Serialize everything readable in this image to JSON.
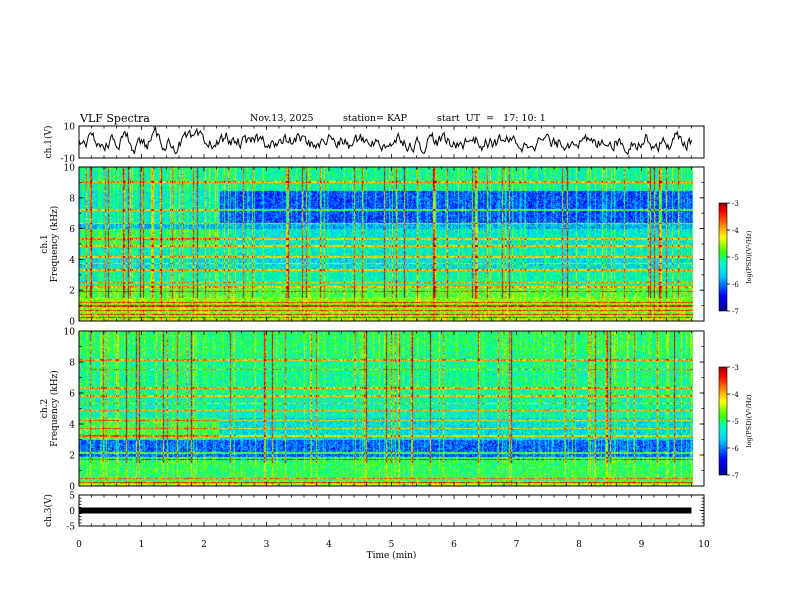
{
  "header": {
    "title": "VLF Spectra",
    "date": "Nov.13, 2025",
    "station": "station= KAP",
    "start": "start  UT  =   17: 10: 1"
  },
  "chart_data": [
    {
      "type": "line",
      "name": "ch1-waveform",
      "ylabel": "ch.1(V)",
      "ylim": [
        -10,
        10
      ],
      "y_ticks": [
        "10",
        "-10"
      ],
      "xlim": [
        0,
        10
      ],
      "approx_amplitude": 5
    },
    {
      "type": "heatmap",
      "name": "ch1-spectrogram",
      "ylabel": "ch.1\nFrequency (kHz)",
      "ylim": [
        0,
        10
      ],
      "y_ticks": [
        "0",
        "2",
        "4",
        "6",
        "8",
        "10"
      ],
      "xlim": [
        0,
        10
      ],
      "data_extent_min": 9.8,
      "colorbar": {
        "label": "log(PSD)(V²/Hz)",
        "range": [
          -7,
          -3
        ],
        "ticks": [
          "-3",
          "-4",
          "-5",
          "-6",
          "-7"
        ]
      },
      "horizontal_lines_khz": [
        0.25,
        0.45,
        0.7,
        1.0,
        1.25,
        1.95,
        2.25,
        2.55,
        3.35,
        3.75,
        4.2,
        4.9,
        5.35,
        6.35,
        7.25,
        9.05
      ],
      "change_time_min": 2.25,
      "features": "broadband impulsive vertical lines (sferics), quiet blue band 6-8.5 kHz"
    },
    {
      "type": "heatmap",
      "name": "ch2-spectrogram",
      "ylabel": "ch.2\nFrequency (kHz)",
      "ylim": [
        0,
        10
      ],
      "y_ticks": [
        "0",
        "2",
        "4",
        "6",
        "8",
        "10"
      ],
      "xlim": [
        0,
        10
      ],
      "data_extent_min": 9.8,
      "colorbar": {
        "label": "log(PSD)(V²/Hz)",
        "range": [
          -7,
          -3
        ],
        "ticks": [
          "-3",
          "-4",
          "-5",
          "-6",
          "-7"
        ]
      },
      "horizontal_lines_khz": [
        0.25,
        0.5,
        1.85,
        2.15,
        3.25,
        3.75,
        4.25,
        4.9,
        5.35,
        5.85,
        6.35,
        7.55,
        8.15
      ],
      "change_time_min": 2.25,
      "features": "sferics, quiet blue band 2-3 kHz"
    },
    {
      "type": "line",
      "name": "ch3-trace",
      "ylabel": "ch.3(V)",
      "ylim": [
        -5,
        5
      ],
      "y_ticks": [
        "5",
        "0",
        "-5"
      ],
      "xlim": [
        0,
        10
      ],
      "level": 0
    }
  ],
  "xaxis": {
    "label": "Time (min)",
    "ticks": [
      "0",
      "1",
      "2",
      "3",
      "4",
      "5",
      "6",
      "7",
      "8",
      "9",
      "10"
    ]
  },
  "colors": {
    "trace": "#000000",
    "colormap": [
      "#00008f",
      "#0000ff",
      "#00a0ff",
      "#00ffff",
      "#00ff80",
      "#40ff00",
      "#ffff00",
      "#ff8000",
      "#ff0000",
      "#a00000"
    ]
  }
}
